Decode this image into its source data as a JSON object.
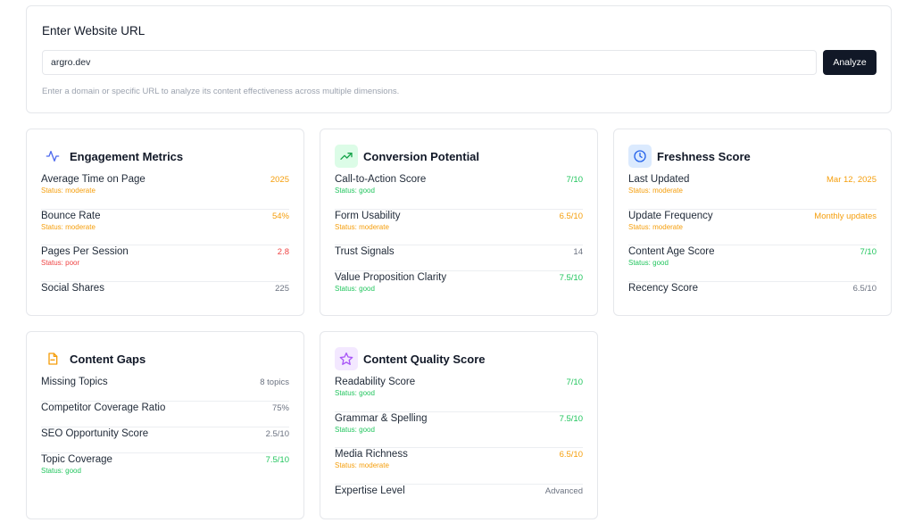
{
  "url_form": {
    "title": "Enter Website URL",
    "input_value": "argro.dev",
    "analyze_label": "Analyze",
    "help_text": "Enter a domain or specific URL to analyze its content effectiveness across multiple dimensions."
  },
  "colors": {
    "good": "#22c55e",
    "moderate": "#f59e0b",
    "poor": "#ef4444",
    "primary_button": "#111827"
  },
  "cards": [
    {
      "title": "Engagement Metrics",
      "icon": "activity-icon",
      "rows": [
        {
          "label": "Average Time on Page",
          "value": "2025",
          "status": "Status: moderate",
          "tone": "moderate"
        },
        {
          "label": "Bounce Rate",
          "value": "54%",
          "status": "Status: moderate",
          "tone": "moderate"
        },
        {
          "label": "Pages Per Session",
          "value": "2.8",
          "status": "Status: poor",
          "tone": "poor"
        },
        {
          "label": "Social Shares",
          "value": "225",
          "status": "",
          "tone": "neutral"
        }
      ]
    },
    {
      "title": "Conversion Potential",
      "icon": "trending-up-icon",
      "rows": [
        {
          "label": "Call-to-Action Score",
          "value": "7/10",
          "status": "Status: good",
          "tone": "good"
        },
        {
          "label": "Form Usability",
          "value": "6.5/10",
          "status": "Status: moderate",
          "tone": "moderate"
        },
        {
          "label": "Trust Signals",
          "value": "14",
          "status": "",
          "tone": "neutral"
        },
        {
          "label": "Value Proposition Clarity",
          "value": "7.5/10",
          "status": "Status: good",
          "tone": "good"
        }
      ]
    },
    {
      "title": "Freshness Score",
      "icon": "clock-icon",
      "rows": [
        {
          "label": "Last Updated",
          "value": "Mar 12, 2025",
          "status": "Status: moderate",
          "tone": "moderate"
        },
        {
          "label": "Update Frequency",
          "value": "Monthly updates",
          "status": "Status: moderate",
          "tone": "moderate"
        },
        {
          "label": "Content Age Score",
          "value": "7/10",
          "status": "Status: good",
          "tone": "good"
        },
        {
          "label": "Recency Score",
          "value": "6.5/10",
          "status": "",
          "tone": "neutral"
        }
      ]
    },
    {
      "title": "Content Gaps",
      "icon": "file-icon",
      "rows": [
        {
          "label": "Missing Topics",
          "value": "8 topics",
          "status": "",
          "tone": "neutral"
        },
        {
          "label": "Competitor Coverage Ratio",
          "value": "75%",
          "status": "",
          "tone": "neutral"
        },
        {
          "label": "SEO Opportunity Score",
          "value": "2.5/10",
          "status": "",
          "tone": "neutral"
        },
        {
          "label": "Topic Coverage",
          "value": "7.5/10",
          "status": "Status: good",
          "tone": "good"
        }
      ]
    },
    {
      "title": "Content Quality Score",
      "icon": "star-icon",
      "rows": [
        {
          "label": "Readability Score",
          "value": "7/10",
          "status": "Status: good",
          "tone": "good"
        },
        {
          "label": "Grammar & Spelling",
          "value": "7.5/10",
          "status": "Status: good",
          "tone": "good"
        },
        {
          "label": "Media Richness",
          "value": "6.5/10",
          "status": "Status: moderate",
          "tone": "moderate"
        },
        {
          "label": "Expertise Level",
          "value": "Advanced",
          "status": "",
          "tone": "neutral"
        }
      ]
    }
  ]
}
